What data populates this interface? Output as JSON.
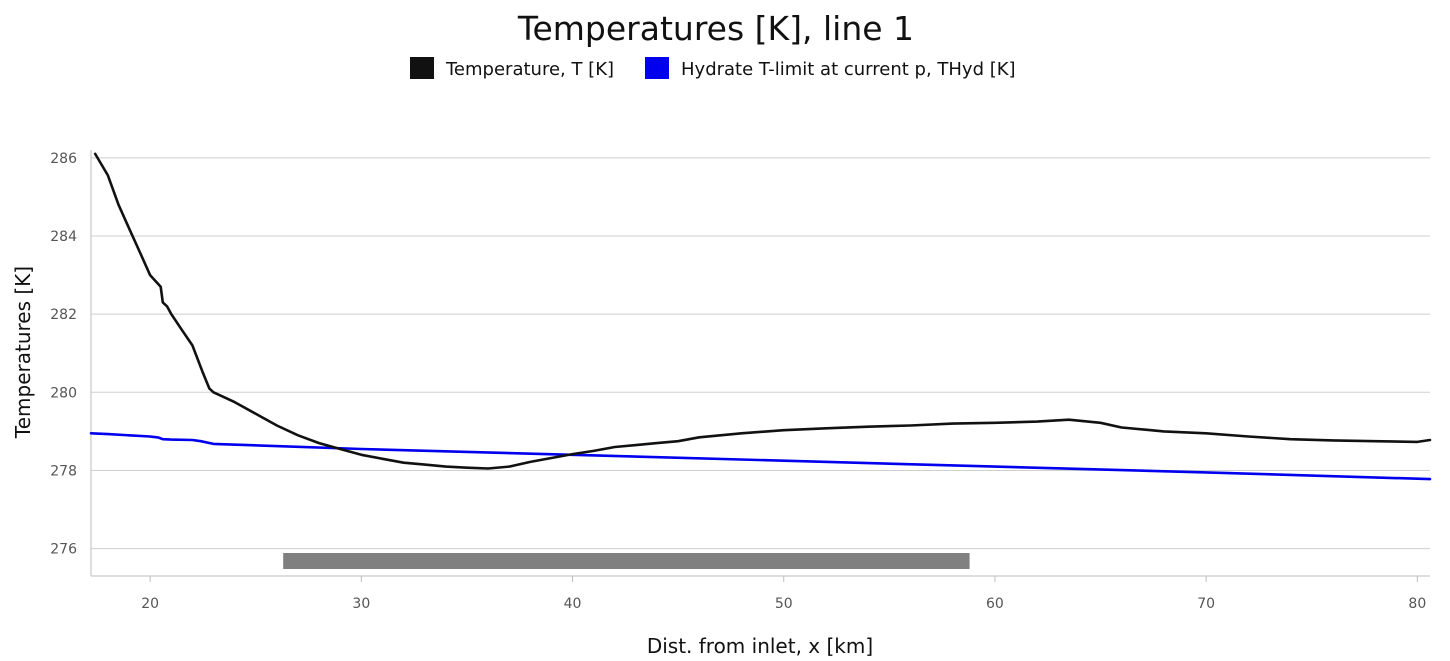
{
  "chart_data": {
    "type": "line",
    "title": "Temperatures [K], line 1",
    "xlabel": "Dist. from inlet, x [km]",
    "ylabel": "Temperatures [K]",
    "xlim": [
      17.2,
      80.6
    ],
    "ylim": [
      275.3,
      286.2
    ],
    "x_ticks": [
      20,
      30,
      40,
      50,
      60,
      70,
      80
    ],
    "y_ticks": [
      276,
      278,
      280,
      282,
      284,
      286
    ],
    "grid": "horizontal",
    "legend_position": "top-center",
    "series": [
      {
        "name": "Temperature, T [K]",
        "color": "#111111",
        "x": [
          17.4,
          18.0,
          18.5,
          19.0,
          19.5,
          20.0,
          20.5,
          20.6,
          20.8,
          21.0,
          21.5,
          22.0,
          22.5,
          22.8,
          23.0,
          24.0,
          25.0,
          26.0,
          27.0,
          28.0,
          29.0,
          30.0,
          31.0,
          32.0,
          33.0,
          34.0,
          35.0,
          36.0,
          37.0,
          38.0,
          39.0,
          40.0,
          41.0,
          42.0,
          43.0,
          44.0,
          45.0,
          46.0,
          48.0,
          50.0,
          52.0,
          54.0,
          56.0,
          58.0,
          60.0,
          62.0,
          63.5,
          65.0,
          66.0,
          68.0,
          70.0,
          72.0,
          74.0,
          76.0,
          78.0,
          80.0,
          80.6
        ],
        "y": [
          286.1,
          285.55,
          284.8,
          284.2,
          283.6,
          283.0,
          282.7,
          282.3,
          282.2,
          282.0,
          281.6,
          281.2,
          280.5,
          280.1,
          280.0,
          279.75,
          279.45,
          279.15,
          278.9,
          278.7,
          278.55,
          278.4,
          278.3,
          278.2,
          278.15,
          278.1,
          278.07,
          278.05,
          278.1,
          278.22,
          278.32,
          278.42,
          278.5,
          278.6,
          278.65,
          278.7,
          278.75,
          278.85,
          278.95,
          279.03,
          279.08,
          279.12,
          279.15,
          279.2,
          279.22,
          279.25,
          279.3,
          279.22,
          279.1,
          279.0,
          278.95,
          278.87,
          278.8,
          278.77,
          278.75,
          278.73,
          278.78
        ]
      },
      {
        "name": "Hydrate T-limit at current p, THyd [K]",
        "color": "#0000ee",
        "x": [
          17.2,
          18.0,
          19.0,
          20.0,
          20.4,
          20.6,
          21.0,
          22.0,
          22.4,
          23.0,
          30.0,
          40.0,
          50.0,
          60.0,
          70.0,
          80.6
        ],
        "y": [
          278.95,
          278.93,
          278.9,
          278.87,
          278.84,
          278.8,
          278.79,
          278.78,
          278.75,
          278.68,
          278.55,
          278.4,
          278.25,
          278.1,
          277.95,
          277.78
        ]
      }
    ],
    "annotations": [
      {
        "type": "range-bar",
        "x_start": 26.3,
        "x_end": 58.8,
        "color": "#808080"
      }
    ]
  }
}
